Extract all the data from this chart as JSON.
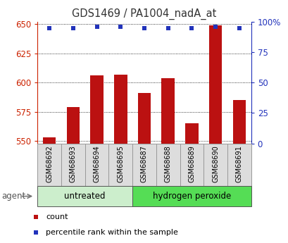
{
  "title": "GDS1469 / PA1004_nadA_at",
  "samples": [
    "GSM68692",
    "GSM68693",
    "GSM68694",
    "GSM68695",
    "GSM68687",
    "GSM68688",
    "GSM68689",
    "GSM68690",
    "GSM68691"
  ],
  "counts": [
    553,
    579,
    606,
    607,
    591,
    604,
    565,
    649,
    585
  ],
  "percentile_ranks": [
    95,
    95,
    96,
    96,
    95,
    95,
    95,
    96,
    95
  ],
  "ylim_left": [
    548,
    652
  ],
  "ylim_right": [
    0,
    100
  ],
  "yticks_left": [
    550,
    575,
    600,
    625,
    650
  ],
  "yticks_right": [
    0,
    25,
    50,
    75,
    100
  ],
  "ytick_labels_right": [
    "0",
    "25",
    "50",
    "75",
    "100%"
  ],
  "bar_color": "#bb1111",
  "dot_color": "#2233bb",
  "groups": [
    {
      "label": "untreated",
      "indices": [
        0,
        1,
        2,
        3
      ],
      "color": "#cceecc"
    },
    {
      "label": "hydrogen peroxide",
      "indices": [
        4,
        5,
        6,
        7,
        8
      ],
      "color": "#55dd55"
    }
  ],
  "group_label_prefix": "agent",
  "legend_count_label": "count",
  "legend_pct_label": "percentile rank within the sample",
  "tick_bg_color": "#dddddd",
  "grid_color": "#000000",
  "title_color": "#333333",
  "left_axis_color": "#cc2200",
  "right_axis_color": "#2233bb",
  "bg_color": "#ffffff"
}
